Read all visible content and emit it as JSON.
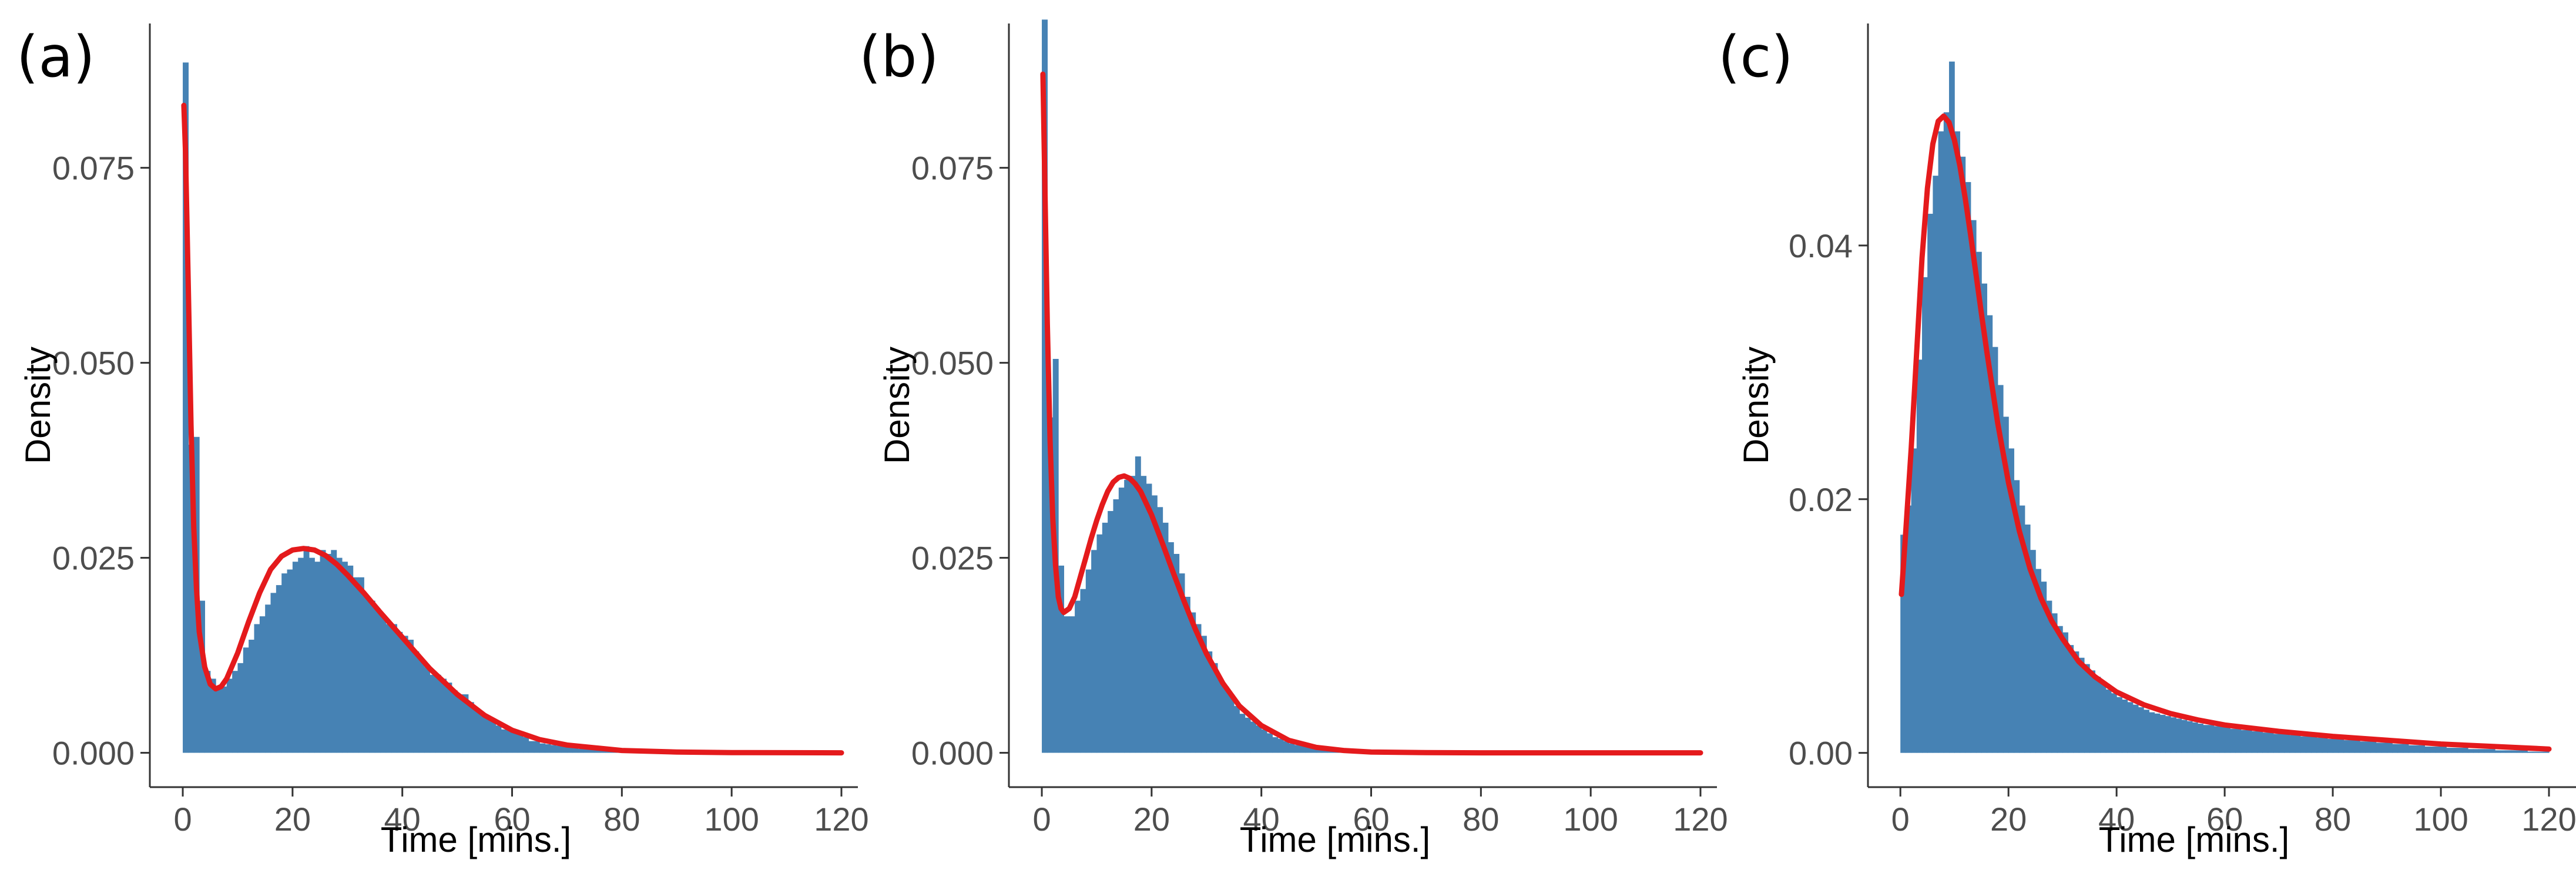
{
  "colors": {
    "bar": "#4682B4",
    "curve": "#E41A1C",
    "axis": "#333333",
    "tick_text": "#4d4d4d"
  },
  "chart_data": [
    {
      "panel": "(a)",
      "type": "bar",
      "xlabel": "Time [mins.]",
      "ylabel": "Density",
      "xlim": [
        -6,
        123
      ],
      "ylim": [
        -0.0044,
        0.0935
      ],
      "xticks": [
        0,
        20,
        40,
        60,
        80,
        100,
        120
      ],
      "xtick_labels": [
        "0",
        "20",
        "40",
        "60",
        "80",
        "100",
        "120"
      ],
      "yticks": [
        0,
        0.025,
        0.05,
        0.075
      ],
      "ytick_labels": [
        "0.000",
        "0.025",
        "0.050",
        "0.075"
      ],
      "bin_width": 1,
      "bar_values": [
        0.0885,
        0.0395,
        0.0405,
        0.0195,
        0.0105,
        0.0095,
        0.0085,
        0.0085,
        0.0095,
        0.0105,
        0.0115,
        0.0135,
        0.0145,
        0.0165,
        0.0175,
        0.019,
        0.0205,
        0.0215,
        0.023,
        0.0235,
        0.0245,
        0.025,
        0.0265,
        0.025,
        0.0245,
        0.026,
        0.0255,
        0.026,
        0.025,
        0.0245,
        0.024,
        0.0225,
        0.0225,
        0.02,
        0.0195,
        0.0185,
        0.0175,
        0.0165,
        0.0165,
        0.0155,
        0.015,
        0.0145,
        0.013,
        0.012,
        0.011,
        0.01,
        0.01,
        0.0095,
        0.009,
        0.008,
        0.0075,
        0.0075,
        0.0065,
        0.0055,
        0.005,
        0.0045,
        0.004,
        0.0035,
        0.003,
        0.003,
        0.003,
        0.0025,
        0.002,
        0.0015,
        0.0015,
        0.0012,
        0.0011,
        0.001,
        0.0009,
        0.0008,
        0.0007,
        0.0006,
        0.0005,
        0.0005,
        0.0004,
        0.0004,
        0.0003,
        0.0003,
        0.0002,
        0.0002,
        0.0002,
        0.0001,
        0.0001,
        0.0001,
        0.0001,
        0.0001,
        0.0001,
        0,
        0,
        0,
        0,
        0,
        0,
        0,
        0,
        0,
        0,
        0,
        0,
        0,
        0,
        0,
        0,
        0,
        0,
        0,
        0,
        0,
        0,
        0,
        0,
        0,
        0,
        0,
        0,
        0,
        0,
        0,
        0,
        0
      ],
      "curve": {
        "x": [
          0.2,
          0.5,
          1,
          1.5,
          2,
          2.5,
          3,
          4,
          5,
          6,
          7,
          8,
          10,
          12,
          14,
          16,
          18,
          20,
          22,
          24,
          26,
          28,
          30,
          33,
          36,
          40,
          45,
          50,
          55,
          60,
          65,
          70,
          80,
          90,
          100,
          110,
          120
        ],
        "y": [
          0.083,
          0.077,
          0.06,
          0.042,
          0.029,
          0.021,
          0.0155,
          0.011,
          0.0088,
          0.0082,
          0.0085,
          0.0095,
          0.0128,
          0.0168,
          0.0205,
          0.0235,
          0.0252,
          0.026,
          0.0262,
          0.026,
          0.0253,
          0.0242,
          0.0228,
          0.0205,
          0.018,
          0.0148,
          0.0108,
          0.0075,
          0.0048,
          0.0029,
          0.0017,
          0.001,
          0.0003,
          0.0001,
          3e-05,
          1e-05,
          0
        ]
      }
    },
    {
      "panel": "(b)",
      "type": "bar",
      "xlabel": "Time [mins.]",
      "ylabel": "Density",
      "xlim": [
        -6,
        123
      ],
      "ylim": [
        -0.0044,
        0.0935
      ],
      "xticks": [
        0,
        20,
        40,
        60,
        80,
        100,
        120
      ],
      "xtick_labels": [
        "0",
        "20",
        "40",
        "60",
        "80",
        "100",
        "120"
      ],
      "yticks": [
        0,
        0.025,
        0.05,
        0.075
      ],
      "ytick_labels": [
        "0.000",
        "0.025",
        "0.050",
        "0.075"
      ],
      "bin_width": 1,
      "bar_values": [
        0.094,
        0.043,
        0.0505,
        0.024,
        0.0175,
        0.0175,
        0.0195,
        0.021,
        0.0235,
        0.026,
        0.028,
        0.0295,
        0.031,
        0.0325,
        0.034,
        0.035,
        0.0355,
        0.038,
        0.0355,
        0.0345,
        0.033,
        0.0315,
        0.0295,
        0.027,
        0.0255,
        0.023,
        0.02,
        0.018,
        0.0165,
        0.015,
        0.013,
        0.0115,
        0.0095,
        0.0085,
        0.0075,
        0.006,
        0.005,
        0.0045,
        0.004,
        0.0035,
        0.003,
        0.0025,
        0.002,
        0.0018,
        0.0015,
        0.0012,
        0.001,
        0.0009,
        0.0008,
        0.0007,
        0.0006,
        0.0005,
        0.0004,
        0.0003,
        0.0003,
        0.0002,
        0.0002,
        0.0002,
        0.0001,
        0.0001,
        0.0001,
        0.0001,
        0,
        0,
        0,
        0,
        0,
        0,
        0,
        0,
        0,
        0,
        0,
        0,
        0,
        0,
        0,
        0,
        0,
        0,
        0,
        0,
        0,
        0,
        0,
        0,
        0,
        0,
        0,
        0,
        0,
        0,
        0,
        0,
        0,
        0,
        0,
        0,
        0,
        0,
        0,
        0,
        0,
        0,
        0,
        0,
        0,
        0,
        0,
        0,
        0,
        0,
        0,
        0,
        0,
        0,
        0,
        0,
        0
      ],
      "curve": {
        "x": [
          0.2,
          0.5,
          1,
          1.5,
          2,
          2.5,
          3,
          3.5,
          4,
          5,
          6,
          7,
          8,
          9,
          10,
          11,
          12,
          13,
          14,
          15,
          16,
          17,
          18,
          20,
          22,
          24,
          26,
          28,
          30,
          33,
          36,
          40,
          45,
          50,
          55,
          60,
          70,
          80,
          100,
          120
        ],
        "y": [
          0.087,
          0.075,
          0.055,
          0.04,
          0.03,
          0.024,
          0.02,
          0.0185,
          0.018,
          0.0185,
          0.02,
          0.0225,
          0.025,
          0.0275,
          0.0298,
          0.0318,
          0.0335,
          0.0347,
          0.0353,
          0.0355,
          0.0352,
          0.0345,
          0.0335,
          0.0305,
          0.0268,
          0.023,
          0.0193,
          0.0158,
          0.0127,
          0.0089,
          0.006,
          0.0035,
          0.0016,
          0.0007,
          0.0003,
          0.0001,
          2e-05,
          0,
          0,
          0
        ]
      }
    },
    {
      "panel": "(c)",
      "type": "bar",
      "xlabel": "Time [mins.]",
      "ylabel": "Density",
      "xlim": [
        -6,
        125
      ],
      "ylim": [
        -0.0027,
        0.0575
      ],
      "xticks": [
        0,
        20,
        40,
        60,
        80,
        100,
        120
      ],
      "xtick_labels": [
        "0",
        "20",
        "40",
        "60",
        "80",
        "100",
        "120"
      ],
      "yticks": [
        0,
        0.02,
        0.04
      ],
      "ytick_labels": [
        "0.00",
        "0.02",
        "0.04"
      ],
      "bin_width": 1,
      "bar_values": [
        0.0172,
        0.0195,
        0.024,
        0.031,
        0.0375,
        0.0425,
        0.0455,
        0.049,
        0.0505,
        0.0545,
        0.049,
        0.047,
        0.045,
        0.042,
        0.0395,
        0.037,
        0.0345,
        0.032,
        0.029,
        0.0265,
        0.024,
        0.0215,
        0.0195,
        0.018,
        0.016,
        0.0145,
        0.0135,
        0.012,
        0.011,
        0.01,
        0.0095,
        0.0085,
        0.008,
        0.0075,
        0.007,
        0.0065,
        0.006,
        0.0055,
        0.005,
        0.0047,
        0.0044,
        0.0042,
        0.004,
        0.0038,
        0.0036,
        0.0034,
        0.0032,
        0.0031,
        0.003,
        0.0029,
        0.0028,
        0.0027,
        0.0026,
        0.0025,
        0.0024,
        0.0023,
        0.0022,
        0.0022,
        0.0021,
        0.0021,
        0.002,
        0.0019,
        0.0019,
        0.0018,
        0.0018,
        0.0017,
        0.0017,
        0.0016,
        0.0016,
        0.0015,
        0.0015,
        0.0015,
        0.0014,
        0.0014,
        0.0013,
        0.0013,
        0.0013,
        0.0012,
        0.0012,
        0.0011,
        0.0011,
        0.0011,
        0.001,
        0.001,
        0.001,
        0.0009,
        0.0009,
        0.0009,
        0.0008,
        0.0008,
        0.0008,
        0.0007,
        0.0007,
        0.0007,
        0.0006,
        0.0006,
        0.0006,
        0.0005,
        0.0005,
        0.0005,
        0.0005,
        0.0004,
        0.0004,
        0.0004,
        0.0004,
        0.0003,
        0.0003,
        0.0003,
        0.0003,
        0.0003,
        0.0002,
        0.0002,
        0.0002,
        0.0002,
        0.0002,
        0.0002,
        0.0001,
        0.0001,
        0.0001,
        0.0001
      ],
      "curve": {
        "x": [
          0.2,
          1,
          2,
          3,
          4,
          5,
          6,
          7,
          8,
          9,
          10,
          11,
          12,
          13,
          14,
          15,
          16,
          18,
          20,
          22,
          24,
          26,
          28,
          30,
          33,
          36,
          40,
          45,
          50,
          55,
          60,
          70,
          80,
          90,
          100,
          110,
          120
        ],
        "y": [
          0.0125,
          0.0175,
          0.024,
          0.0315,
          0.039,
          0.0445,
          0.048,
          0.0498,
          0.0502,
          0.0497,
          0.0483,
          0.0463,
          0.0437,
          0.0408,
          0.0377,
          0.0346,
          0.0316,
          0.026,
          0.0213,
          0.0175,
          0.0145,
          0.0122,
          0.0104,
          0.009,
          0.0072,
          0.006,
          0.0048,
          0.0038,
          0.0031,
          0.0026,
          0.0022,
          0.0017,
          0.0013,
          0.001,
          0.0007,
          0.0005,
          0.0003
        ]
      }
    }
  ]
}
